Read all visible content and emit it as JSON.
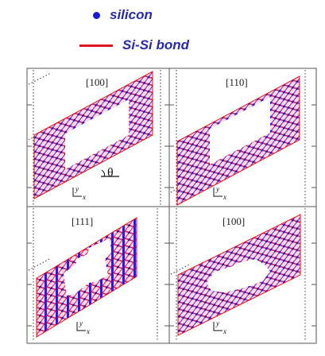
{
  "legend": {
    "silicon_label": "silicon",
    "bond_label": "Si-Si bond",
    "silicon_color": "#1a1ad6",
    "bond_color": "#e0141e"
  },
  "panels": [
    {
      "label": "[100]",
      "hole": "rectangle",
      "theta_label": "θ",
      "axis_y": "y",
      "axis_x": "x"
    },
    {
      "label": "[110]",
      "hole": "rectangle",
      "axis_y": "y",
      "axis_x": "x"
    },
    {
      "label": "[111]",
      "hole": "jagged",
      "axis_y": "y",
      "axis_x": "x"
    },
    {
      "label": "[100]",
      "hole": "ellipse",
      "axis_y": "y",
      "axis_x": "x"
    }
  ]
}
